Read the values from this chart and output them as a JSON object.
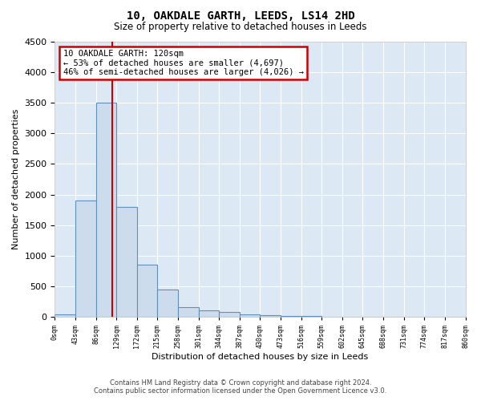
{
  "title": "10, OAKDALE GARTH, LEEDS, LS14 2HD",
  "subtitle": "Size of property relative to detached houses in Leeds",
  "xlabel": "Distribution of detached houses by size in Leeds",
  "ylabel": "Number of detached properties",
  "bar_edges": [
    0,
    43,
    86,
    129,
    172,
    215,
    258,
    301,
    344,
    387,
    430,
    473,
    516,
    559,
    602,
    645,
    688,
    731,
    774,
    817,
    860
  ],
  "bar_heights": [
    50,
    1900,
    3500,
    1800,
    850,
    450,
    160,
    110,
    80,
    50,
    30,
    20,
    15,
    10,
    8,
    5,
    5,
    5,
    5,
    5
  ],
  "bar_color": "#ccdcec",
  "bar_edge_color": "#6090b8",
  "property_sqm": 120,
  "vline_color": "#cc0000",
  "annotation_line1": "10 OAKDALE GARTH: 120sqm",
  "annotation_line2": "← 53% of detached houses are smaller (4,697)",
  "annotation_line3": "46% of semi-detached houses are larger (4,026) →",
  "annotation_box_color": "#cc0000",
  "ylim": [
    0,
    4500
  ],
  "yticks": [
    0,
    500,
    1000,
    1500,
    2000,
    2500,
    3000,
    3500,
    4000,
    4500
  ],
  "background_color": "#dce8f4",
  "grid_color": "#ffffff",
  "footer_line1": "Contains HM Land Registry data © Crown copyright and database right 2024.",
  "footer_line2": "Contains public sector information licensed under the Open Government Licence v3.0."
}
